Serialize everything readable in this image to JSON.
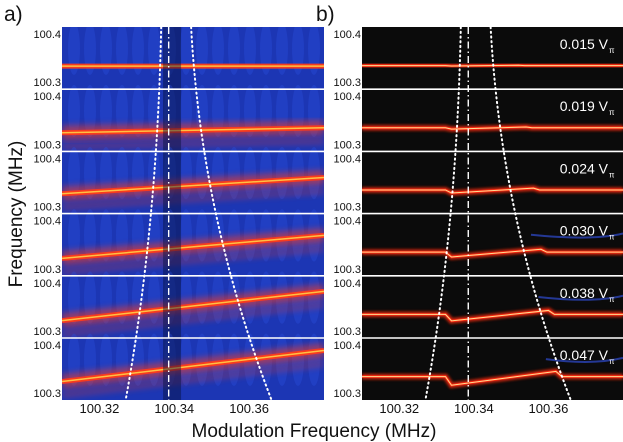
{
  "panel_labels": [
    "a)",
    "b)"
  ],
  "ylabel": "Frequency (MHz)",
  "xlabel": "Modulation Frequency (MHz)",
  "y_ticks": [
    "100.4",
    "100.3"
  ],
  "x_ticks": [
    "100.32",
    "100.34",
    "100.36"
  ],
  "amplitude_labels": [
    "0.015 V",
    "0.019 V",
    "0.024 V",
    "0.030 V",
    "0.038 V",
    "0.047 V"
  ],
  "amplitude_subscript": "π",
  "colors": {
    "a_background": "#1c36b4",
    "a_line": "#ff3b1a",
    "a_core": "#ffd84a",
    "b_background": "#0b0b0b",
    "b_line": "#ff2a10",
    "b_core": "#fff0a0",
    "separator": "#ffffff"
  },
  "chart_data": {
    "type": "heatmap",
    "panels": [
      "a",
      "b"
    ],
    "x_range": [
      100.31,
      100.38
    ],
    "y_range": [
      100.29,
      100.41
    ],
    "rows": [
      {
        "amplitude": 0.015,
        "center_freq": 100.335
      },
      {
        "amplitude": 0.019,
        "center_freq": 100.335
      },
      {
        "amplitude": 0.024,
        "center_freq": 100.335
      },
      {
        "amplitude": 0.03,
        "center_freq": 100.335
      },
      {
        "amplitude": 0.038,
        "center_freq": 100.335
      },
      {
        "amplitude": 0.047,
        "center_freq": 100.335
      }
    ]
  }
}
